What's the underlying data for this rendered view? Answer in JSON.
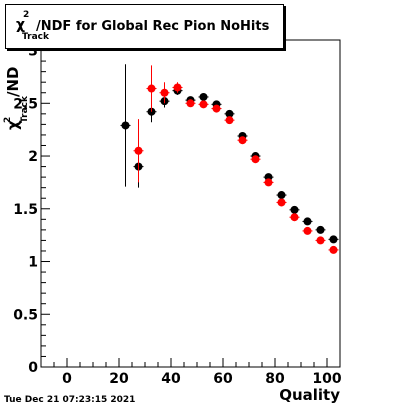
{
  "chart_data": {
    "type": "scatter",
    "title": "χ²Track/NDF for Global Rec Pion NoHits",
    "title_parts": {
      "chi": "χ",
      "sup": "2",
      "sub": "Track",
      "rest": "/NDF for Global Rec Pion NoHits"
    },
    "xlabel": "Quality",
    "ylabel_parts": {
      "chi": "χ",
      "sup": "2",
      "sub": "Track",
      "rest": "/ND"
    },
    "xlim": [
      -10,
      105
    ],
    "ylim": [
      0,
      3.1
    ],
    "xticks": [
      0,
      20,
      40,
      60,
      80,
      100
    ],
    "yticks": [
      0,
      0.5,
      1,
      1.5,
      2,
      2.5,
      3
    ],
    "ytick_labels": [
      "0",
      "0.5",
      "1",
      "1.5",
      "2",
      "2.5",
      "3"
    ],
    "grid": false,
    "series": [
      {
        "color": "#000000",
        "x": [
          22.5,
          27.5,
          32.5,
          37.5,
          42.5,
          47.5,
          52.5,
          57.5,
          62.5,
          67.5,
          72.5,
          77.5,
          82.5,
          87.5,
          92.5,
          97.5,
          102.5
        ],
        "y": [
          2.29,
          1.9,
          2.42,
          2.52,
          2.62,
          2.53,
          2.56,
          2.49,
          2.4,
          2.19,
          2.0,
          1.8,
          1.63,
          1.49,
          1.38,
          1.3,
          1.21
        ],
        "yerr": [
          0.58,
          0.2,
          0.1,
          0.06,
          0.04,
          0.03,
          0.03,
          0.03,
          0.03,
          0.03,
          0.03,
          0.02,
          0.02,
          0.02,
          0.02,
          0.02,
          0.02
        ]
      },
      {
        "color": "#ff0000",
        "x": [
          22.5,
          27.5,
          32.5,
          37.5,
          42.5,
          47.5,
          52.5,
          57.5,
          62.5,
          67.5,
          72.5,
          77.5,
          82.5,
          87.5,
          92.5,
          97.5,
          102.5
        ],
        "y": [
          null,
          2.05,
          2.64,
          2.6,
          2.65,
          2.5,
          2.49,
          2.45,
          2.34,
          2.15,
          1.97,
          1.75,
          1.56,
          1.42,
          1.29,
          1.2,
          1.11
        ],
        "yerr": [
          null,
          0.3,
          0.22,
          0.1,
          0.05,
          0.03,
          0.03,
          0.03,
          0.03,
          0.03,
          0.03,
          0.02,
          0.02,
          0.02,
          0.02,
          0.02,
          0.02
        ]
      }
    ]
  },
  "footer": {
    "timestamp": "Tue Dec 21 07:23:15 2021"
  }
}
